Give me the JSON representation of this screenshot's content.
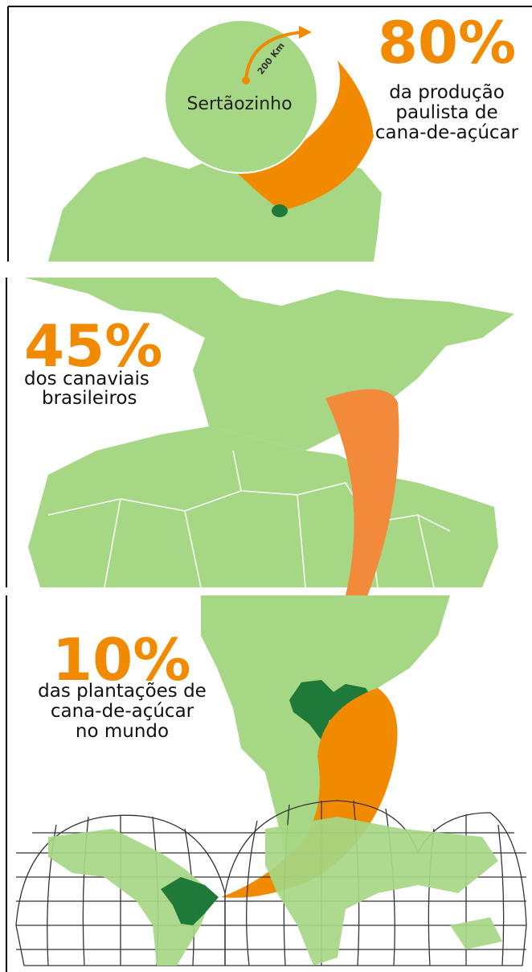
{
  "panels": [
    {
      "stat": "80%",
      "caption": [
        "da produção",
        "paulista de",
        "cana-de-açúcar"
      ],
      "city": "Sertãozinho",
      "distance": "200 Km"
    },
    {
      "stat": "45%",
      "caption": [
        "dos canaviais",
        "brasileiros"
      ]
    },
    {
      "stat": "10%",
      "caption": [
        "das plantações de",
        "cana-de-açúcar",
        "no mundo"
      ]
    }
  ]
}
